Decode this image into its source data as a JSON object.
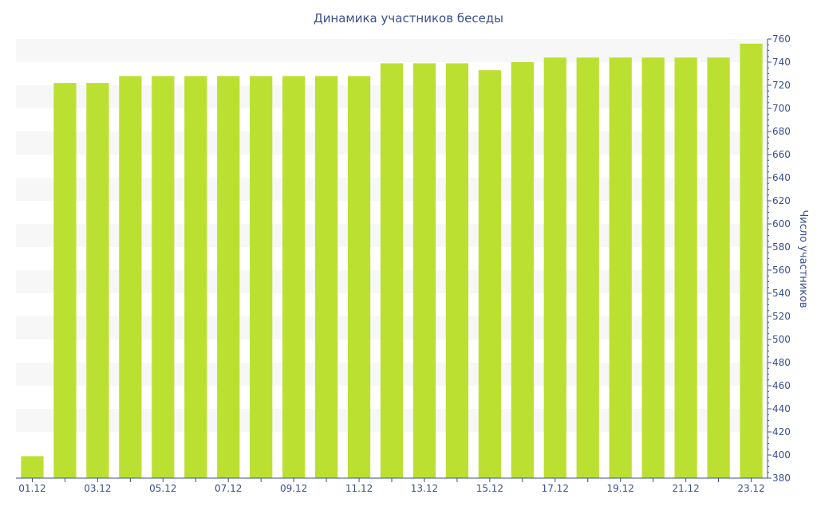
{
  "chart_data": {
    "type": "bar",
    "title": "Динамика участников беседы",
    "ylabel": "Число участников",
    "xlabel": "",
    "ylim": [
      380,
      760
    ],
    "y_axis_side": "right",
    "yticks": [
      380,
      400,
      420,
      440,
      460,
      480,
      500,
      520,
      540,
      560,
      580,
      600,
      620,
      640,
      660,
      680,
      700,
      720,
      740,
      760
    ],
    "categories": [
      "01.12",
      "02.12",
      "03.12",
      "04.12",
      "05.12",
      "06.12",
      "07.12",
      "08.12",
      "09.12",
      "10.12",
      "11.12",
      "12.12",
      "13.12",
      "14.12",
      "15.12",
      "16.12",
      "17.12",
      "18.12",
      "19.12",
      "20.12",
      "21.12",
      "22.12",
      "23.12"
    ],
    "x_tick_labels_shown": [
      "01.12",
      "03.12",
      "05.12",
      "07.12",
      "09.12",
      "11.12",
      "13.12",
      "15.12",
      "17.12",
      "19.12",
      "21.12",
      "23.12"
    ],
    "values": [
      399,
      722,
      722,
      728,
      728,
      728,
      728,
      728,
      728,
      728,
      728,
      739,
      739,
      739,
      733,
      740,
      744,
      744,
      744,
      744,
      744,
      744,
      756
    ],
    "grid": "alternating horizontal bands",
    "legend": "none"
  },
  "colors": {
    "bar": "#bce032",
    "band": "#f7f7f7",
    "axis": "#3a4f8f",
    "text": "#3a4f8f"
  }
}
